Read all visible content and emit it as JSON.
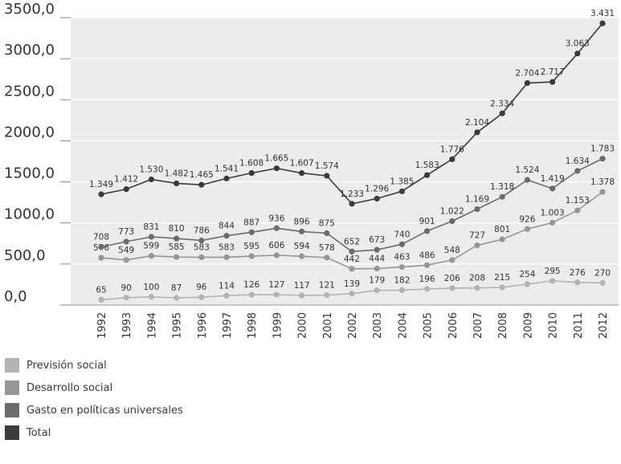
{
  "chart_data": {
    "type": "line",
    "title": "",
    "xlabel": "",
    "ylabel": "",
    "ylim": [
      0,
      3500
    ],
    "y_tick_labels": [
      "0,0",
      "500,0",
      "1000,0",
      "1500,0",
      "2000,0",
      "2500,0",
      "3000,0",
      "3500,0"
    ],
    "categories": [
      "1992",
      "1993",
      "1994",
      "1995",
      "1996",
      "1997",
      "1998",
      "1999",
      "2000",
      "2001",
      "2002",
      "2003",
      "2004",
      "2005",
      "2006",
      "2007",
      "2008",
      "2009",
      "2010",
      "2011",
      "2012"
    ],
    "grid": "horizontal",
    "legend_position": "bottom-left",
    "series": [
      {
        "name": "Previsión social",
        "color": "#b3b3b3",
        "values": [
          65,
          90,
          100,
          87,
          96,
          114,
          126,
          127,
          117,
          121,
          139,
          179,
          182,
          196,
          206,
          208,
          215,
          254,
          295,
          276,
          270
        ],
        "labels": [
          "65",
          "90",
          "100",
          "87",
          "96",
          "114",
          "126",
          "127",
          "117",
          "121",
          "139",
          "179",
          "182",
          "196",
          "206",
          "208",
          "215",
          "254",
          "295",
          "276",
          "270"
        ]
      },
      {
        "name": "Desarrollo social",
        "color": "#969696",
        "values": [
          576,
          549,
          599,
          585,
          583,
          583,
          595,
          606,
          594,
          578,
          442,
          444,
          463,
          486,
          548,
          727,
          801,
          926,
          1003,
          1153,
          1378
        ],
        "labels": [
          "576",
          "549",
          "599",
          "585",
          "583",
          "583",
          "595",
          "606",
          "594",
          "578",
          "442",
          "444",
          "463",
          "486",
          "548",
          "727",
          "801",
          "926",
          "1.003",
          "1.153",
          "1.378"
        ]
      },
      {
        "name": "Gasto en políticas universales",
        "color": "#6b6b6b",
        "values": [
          708,
          773,
          831,
          810,
          786,
          844,
          887,
          936,
          896,
          875,
          652,
          673,
          740,
          901,
          1022,
          1169,
          1318,
          1524,
          1419,
          1634,
          1783
        ],
        "labels": [
          "708",
          "773",
          "831",
          "810",
          "786",
          "844",
          "887",
          "936",
          "896",
          "875",
          "652",
          "673",
          "740",
          "901",
          "1.022",
          "1.169",
          "1.318",
          "1.524",
          "1.419",
          "1.634",
          "1.783"
        ]
      },
      {
        "name": "Total",
        "color": "#3a3a3a",
        "values": [
          1349,
          1412,
          1530,
          1482,
          1465,
          1541,
          1608,
          1665,
          1607,
          1574,
          1233,
          1296,
          1385,
          1583,
          1776,
          2104,
          2334,
          2704,
          2717,
          3063,
          3431
        ],
        "labels": [
          "1.349",
          "1.412",
          "1.530",
          "1.482",
          "1.465",
          "1.541",
          "1.608",
          "1.665",
          "1.607",
          "1.574",
          "1.233",
          "1.296",
          "1.385",
          "1.583",
          "1.776",
          "2.104",
          "2.334",
          "2.704",
          "2.717",
          "3.063",
          "3.431"
        ]
      }
    ]
  }
}
